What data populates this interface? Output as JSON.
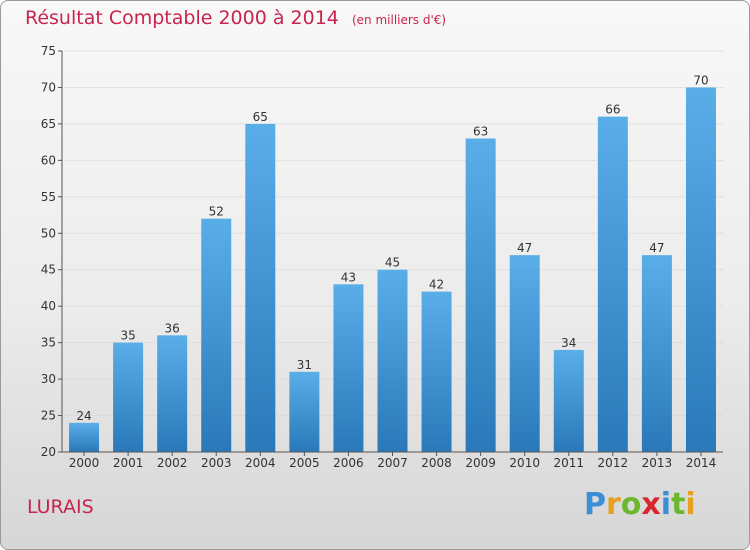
{
  "chart_data": {
    "type": "bar",
    "title": "Résultat Comptable 2000 à 2014",
    "unit": "(en milliers d'€)",
    "categories": [
      "2000",
      "2001",
      "2002",
      "2003",
      "2004",
      "2005",
      "2006",
      "2007",
      "2008",
      "2009",
      "2010",
      "2011",
      "2012",
      "2013",
      "2014"
    ],
    "values": [
      24,
      35,
      36,
      52,
      65,
      31,
      43,
      45,
      42,
      63,
      47,
      34,
      66,
      47,
      70
    ],
    "ylim": [
      20,
      75
    ],
    "yticks": [
      20,
      25,
      30,
      35,
      40,
      45,
      50,
      55,
      60,
      65,
      70,
      75
    ],
    "xlabel": "",
    "ylabel": "",
    "bar_color_top": "#5aaee8",
    "bar_color_bottom": "#2a78b8"
  },
  "commune": "LURAIS",
  "logo": {
    "letters": [
      "P",
      "r",
      "o",
      "x",
      "i",
      "t",
      "i"
    ],
    "colors": [
      "#3a8fd6",
      "#e8a020",
      "#6bb82e",
      "#d8262e",
      "#3a8fd6",
      "#6bb82e",
      "#e8a020"
    ]
  }
}
